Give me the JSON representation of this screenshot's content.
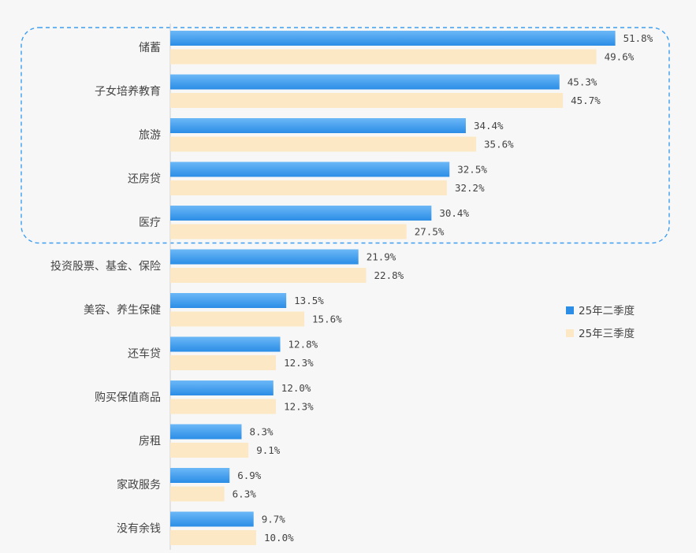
{
  "chart_data": {
    "type": "bar",
    "orientation": "horizontal",
    "categories": [
      "储蓄",
      "子女培养教育",
      "旅游",
      "还房贷",
      "医疗",
      "投资股票、基金、保险",
      "美容、养生保健",
      "还车贷",
      "购买保值商品",
      "房租",
      "家政服务",
      "没有余钱"
    ],
    "series": [
      {
        "name": "25年二季度",
        "color": "#3d9ef0",
        "values": [
          51.8,
          45.3,
          34.4,
          32.5,
          30.4,
          21.9,
          13.5,
          12.8,
          12.0,
          8.3,
          6.9,
          9.7
        ],
        "labels": [
          "51.8%",
          "45.3%",
          "34.4%",
          "32.5%",
          "30.4%",
          "21.9%",
          "13.5%",
          "12.8%",
          "12.0%",
          "8.3%",
          "6.9%",
          "9.7%"
        ]
      },
      {
        "name": "25年三季度",
        "color": "#fde8c6",
        "values": [
          49.6,
          45.7,
          35.6,
          32.2,
          27.5,
          22.8,
          15.6,
          12.3,
          12.3,
          9.1,
          6.3,
          10.0
        ],
        "labels": [
          "49.6%",
          "45.7%",
          "35.6%",
          "32.2%",
          "27.5%",
          "22.8%",
          "15.6%",
          "12.3%",
          "12.3%",
          "9.1%",
          "6.3%",
          "10.0%"
        ]
      }
    ],
    "value_unit": "%",
    "highlight": {
      "from_category": "储蓄",
      "to_category": "医疗",
      "style": "dashed",
      "color": "#3d9ef0"
    },
    "legend_position": "right",
    "grid": false
  }
}
